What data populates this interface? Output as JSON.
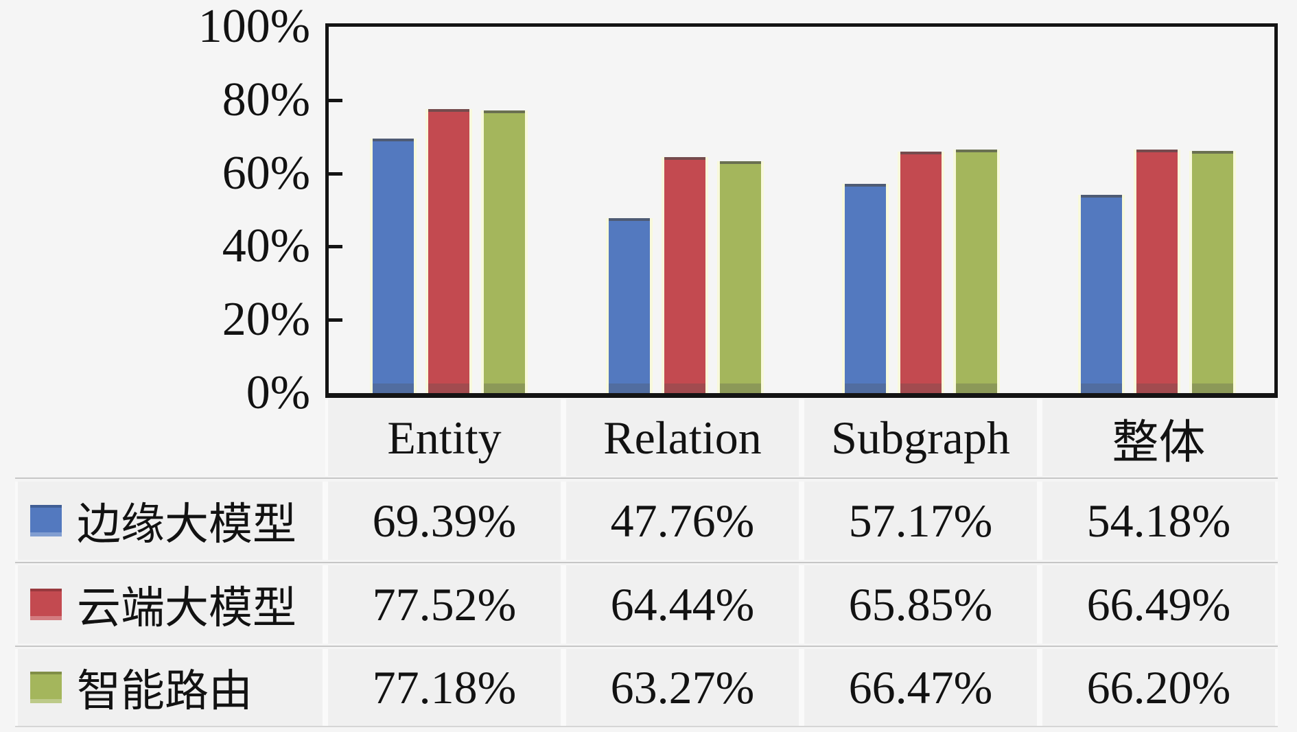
{
  "chart_data": {
    "type": "bar",
    "categories": [
      "Entity",
      "Relation",
      "Subgraph",
      "整体"
    ],
    "series": [
      {
        "name": "边缘大模型",
        "color": "#5379BF",
        "values": [
          69.39,
          47.76,
          57.17,
          54.18
        ]
      },
      {
        "name": "云端大模型",
        "color": "#C34A50",
        "values": [
          77.52,
          64.44,
          65.85,
          66.49
        ]
      },
      {
        "name": "智能路由",
        "color": "#A4B65C",
        "values": [
          77.18,
          63.27,
          66.47,
          66.2
        ]
      }
    ],
    "title": "",
    "xlabel": "",
    "ylabel": "",
    "ylim": [
      0,
      100
    ],
    "yticks_percent": [
      0,
      20,
      40,
      60,
      80,
      100
    ],
    "grid": false,
    "legend_position": "table-left"
  },
  "y_axis": {
    "tick_labels": [
      "100%",
      "80%",
      "60%",
      "40%",
      "20%",
      "0%"
    ]
  },
  "table": {
    "headers": [
      "Entity",
      "Relation",
      "Subgraph",
      "整体"
    ],
    "rows": [
      {
        "label": "边缘大模型",
        "swatch_color": "#5379BF",
        "values": [
          "69.39%",
          "47.76%",
          "57.17%",
          "54.18%"
        ]
      },
      {
        "label": "云端大模型",
        "swatch_color": "#C34A50",
        "values": [
          "77.52%",
          "64.44%",
          "65.85%",
          "66.49%"
        ]
      },
      {
        "label": "智能路由",
        "swatch_color": "#A4B65C",
        "values": [
          "77.18%",
          "63.27%",
          "66.47%",
          "66.20%"
        ]
      }
    ]
  }
}
